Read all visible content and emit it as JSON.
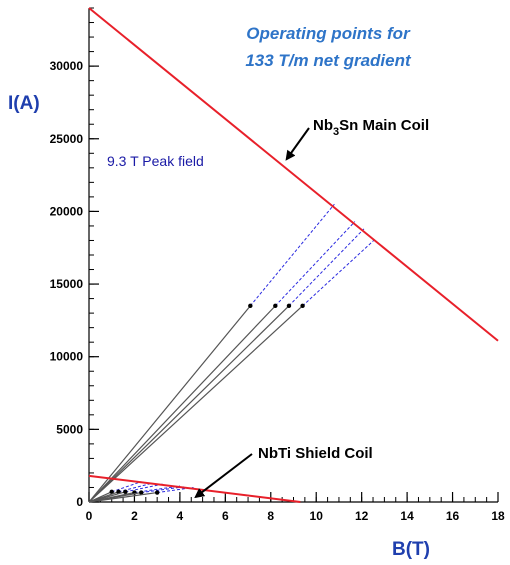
{
  "chart_data": {
    "type": "line",
    "title_lines": [
      "Operating points for",
      "133 T/m net gradient"
    ],
    "xlabel": "B(T)",
    "ylabel": "I(A)",
    "xlim": [
      0,
      18
    ],
    "ylim": [
      0,
      34000
    ],
    "x_ticks": [
      0,
      2,
      4,
      6,
      8,
      10,
      12,
      14,
      16,
      18
    ],
    "x_tick_labels": [
      "0",
      "2",
      "4",
      "6",
      "8",
      "10",
      "12",
      "14",
      "16",
      "18"
    ],
    "y_ticks": [
      0,
      5000,
      10000,
      15000,
      20000,
      25000,
      30000
    ],
    "y_tick_labels": [
      "0",
      "5000",
      "10000",
      "15000",
      "20000",
      "25000",
      "30000"
    ],
    "grid": false,
    "series": [
      {
        "name": "Nb3Sn Main Coil",
        "role": "critical-line",
        "color": "#e8202a",
        "x": [
          0,
          18
        ],
        "y": [
          34000,
          11100
        ]
      },
      {
        "name": "NbTi Shield Coil",
        "role": "critical-line",
        "color": "#e8202a",
        "x": [
          0,
          9.3
        ],
        "y": [
          1800,
          0
        ]
      }
    ],
    "main_load_lines": [
      {
        "op": [
          7.1,
          13500
        ],
        "limit": [
          10.8,
          20500
        ]
      },
      {
        "op": [
          8.2,
          13500
        ],
        "limit": [
          11.7,
          19300
        ]
      },
      {
        "op": [
          8.8,
          13500
        ],
        "limit": [
          12.1,
          18800
        ]
      },
      {
        "op": [
          9.4,
          13500
        ],
        "limit": [
          12.6,
          18100
        ]
      }
    ],
    "shield_load_lines": [
      {
        "op": [
          1.0,
          700
        ],
        "limit": [
          2.3,
          1400
        ]
      },
      {
        "op": [
          1.3,
          700
        ],
        "limit": [
          2.8,
          1300
        ]
      },
      {
        "op": [
          1.6,
          700
        ],
        "limit": [
          3.3,
          1250
        ]
      },
      {
        "op": [
          2.0,
          650
        ],
        "limit": [
          4.0,
          1100
        ]
      },
      {
        "op": [
          2.3,
          650
        ],
        "limit": [
          4.2,
          1050
        ]
      },
      {
        "op": [
          3.0,
          650
        ],
        "limit": [
          4.6,
          1000
        ]
      }
    ],
    "annotations": {
      "main_coil": {
        "pre": "Nb",
        "sub1": "3",
        "post": "Sn Main Coil",
        "arrow_tip": [
          8.7,
          23600
        ]
      },
      "shield_coil": {
        "text": "NbTi Shield Coil",
        "arrow_tip": [
          4.7,
          350
        ]
      },
      "peak_field": "9.3 T Peak field"
    },
    "colors": {
      "critical_line": "#e8202a",
      "load_line": "#555555",
      "extension": "#2a2ae0",
      "axis_label": "#1f3fae",
      "title": "#2e74c8"
    }
  }
}
